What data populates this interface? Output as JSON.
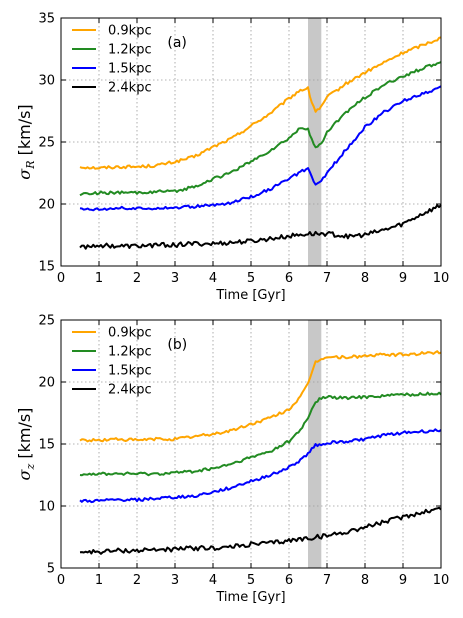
{
  "chart_data": [
    {
      "type": "line",
      "panel_label": "(a)",
      "xlabel": "Time [Gyr]",
      "ylabel_symbol": "σ",
      "ylabel_sub": "R",
      "ylabel_unit": " [km/s]",
      "xlim": [
        0,
        10
      ],
      "ylim": [
        15,
        35
      ],
      "xticks": [
        "0",
        "1",
        "2",
        "3",
        "4",
        "5",
        "6",
        "7",
        "8",
        "9",
        "10"
      ],
      "yticks": [
        "15",
        "20",
        "25",
        "30",
        "35"
      ],
      "grid": true,
      "legend_position": "top-left",
      "shaded_band": [
        6.5,
        6.85
      ],
      "series": [
        {
          "name": "0.9kpc",
          "color": "#FFA500",
          "x": [
            0.5,
            1,
            1.5,
            2,
            2.5,
            3,
            3.5,
            4,
            4.5,
            5,
            5.5,
            6,
            6.3,
            6.5,
            6.6,
            6.7,
            6.85,
            7,
            7.5,
            8,
            8.5,
            9,
            9.5,
            10
          ],
          "y": [
            23.0,
            22.9,
            23.0,
            23.0,
            23.1,
            23.4,
            23.8,
            24.6,
            25.3,
            26.3,
            27.3,
            28.5,
            29.2,
            29.3,
            28.2,
            27.5,
            27.8,
            28.6,
            29.7,
            30.6,
            31.4,
            32.2,
            32.8,
            33.4
          ]
        },
        {
          "name": "1.2kpc",
          "color": "#228B22",
          "x": [
            0.5,
            1,
            1.5,
            2,
            2.5,
            3,
            3.5,
            4,
            4.5,
            5,
            5.5,
            6,
            6.3,
            6.5,
            6.6,
            6.7,
            6.85,
            7,
            7.5,
            8,
            8.5,
            9,
            9.5,
            10
          ],
          "y": [
            20.8,
            20.9,
            20.9,
            20.9,
            21.0,
            21.0,
            21.4,
            22.0,
            22.6,
            23.4,
            24.3,
            25.3,
            26.1,
            26.1,
            25.2,
            24.5,
            24.8,
            25.8,
            27.4,
            28.6,
            29.6,
            30.3,
            30.9,
            31.5
          ]
        },
        {
          "name": "1.5kpc",
          "color": "#0000FF",
          "x": [
            0.5,
            1,
            1.5,
            2,
            2.5,
            3,
            3.5,
            4,
            4.5,
            5,
            5.5,
            6,
            6.3,
            6.5,
            6.6,
            6.7,
            6.85,
            7,
            7.5,
            8,
            8.5,
            9,
            9.5,
            10
          ],
          "y": [
            19.6,
            19.6,
            19.7,
            19.6,
            19.7,
            19.7,
            19.8,
            19.9,
            20.1,
            20.6,
            21.2,
            22.0,
            22.6,
            22.8,
            22.1,
            21.6,
            21.8,
            22.5,
            24.4,
            26.2,
            27.4,
            28.3,
            28.9,
            29.4
          ]
        },
        {
          "name": "2.4kpc",
          "color": "#000000",
          "x": [
            0.5,
            1,
            1.5,
            2,
            2.5,
            3,
            3.5,
            4,
            4.5,
            5,
            5.5,
            6,
            6.5,
            7,
            7.5,
            8,
            8.5,
            9,
            9.5,
            10
          ],
          "y": [
            16.5,
            16.7,
            16.6,
            16.6,
            16.7,
            16.7,
            16.8,
            16.8,
            16.9,
            17.0,
            17.2,
            17.4,
            17.6,
            17.6,
            17.4,
            17.5,
            17.9,
            18.4,
            19.2,
            19.9
          ]
        }
      ]
    },
    {
      "type": "line",
      "panel_label": "(b)",
      "xlabel": "Time [Gyr]",
      "ylabel_symbol": "σ",
      "ylabel_sub": "z",
      "ylabel_unit": " [km/s]",
      "xlim": [
        0,
        10
      ],
      "ylim": [
        5,
        25
      ],
      "xticks": [
        "0",
        "1",
        "2",
        "3",
        "4",
        "5",
        "6",
        "7",
        "8",
        "9",
        "10"
      ],
      "yticks": [
        "5",
        "10",
        "15",
        "20",
        "25"
      ],
      "grid": true,
      "legend_position": "top-left",
      "shaded_band": [
        6.5,
        6.85
      ],
      "series": [
        {
          "name": "0.9kpc",
          "color": "#FFA500",
          "x": [
            0.5,
            1,
            1.5,
            2,
            2.5,
            3,
            3.5,
            4,
            4.5,
            5,
            5.5,
            6,
            6.3,
            6.5,
            6.6,
            6.7,
            6.85,
            7,
            7.5,
            8,
            8.5,
            9,
            9.5,
            10
          ],
          "y": [
            15.3,
            15.3,
            15.4,
            15.3,
            15.4,
            15.4,
            15.6,
            15.8,
            16.1,
            16.6,
            17.1,
            17.8,
            18.8,
            19.8,
            20.8,
            21.6,
            21.9,
            22.0,
            22.0,
            22.1,
            22.2,
            22.2,
            22.3,
            22.4
          ]
        },
        {
          "name": "1.2kpc",
          "color": "#228B22",
          "x": [
            0.5,
            1,
            1.5,
            2,
            2.5,
            3,
            3.5,
            4,
            4.5,
            5,
            5.5,
            6,
            6.3,
            6.5,
            6.6,
            6.7,
            6.85,
            7,
            7.5,
            8,
            8.5,
            9,
            9.5,
            10
          ],
          "y": [
            12.6,
            12.6,
            12.6,
            12.6,
            12.6,
            12.7,
            12.8,
            13.0,
            13.4,
            13.9,
            14.4,
            15.2,
            16.1,
            17.1,
            17.8,
            18.4,
            18.7,
            18.8,
            18.7,
            18.8,
            18.9,
            19.0,
            19.0,
            19.1
          ]
        },
        {
          "name": "1.5kpc",
          "color": "#0000FF",
          "x": [
            0.5,
            1,
            1.5,
            2,
            2.5,
            3,
            3.5,
            4,
            4.5,
            5,
            5.5,
            6,
            6.3,
            6.5,
            6.6,
            6.7,
            6.85,
            7,
            7.5,
            8,
            8.5,
            9,
            9.5,
            10
          ],
          "y": [
            10.4,
            10.4,
            10.5,
            10.5,
            10.6,
            10.7,
            10.8,
            11.1,
            11.5,
            12.0,
            12.5,
            13.1,
            13.7,
            14.2,
            14.6,
            14.9,
            15.0,
            15.1,
            15.2,
            15.4,
            15.7,
            15.9,
            16.0,
            16.1
          ]
        },
        {
          "name": "2.4kpc",
          "color": "#000000",
          "x": [
            0.5,
            1,
            1.5,
            2,
            2.5,
            3,
            3.5,
            4,
            4.5,
            5,
            5.5,
            6,
            6.5,
            7,
            7.5,
            8,
            8.5,
            9,
            9.5,
            10
          ],
          "y": [
            6.3,
            6.3,
            6.4,
            6.4,
            6.5,
            6.5,
            6.6,
            6.6,
            6.7,
            6.9,
            7.0,
            7.2,
            7.4,
            7.6,
            7.9,
            8.3,
            8.7,
            9.1,
            9.5,
            9.8
          ]
        }
      ]
    }
  ]
}
